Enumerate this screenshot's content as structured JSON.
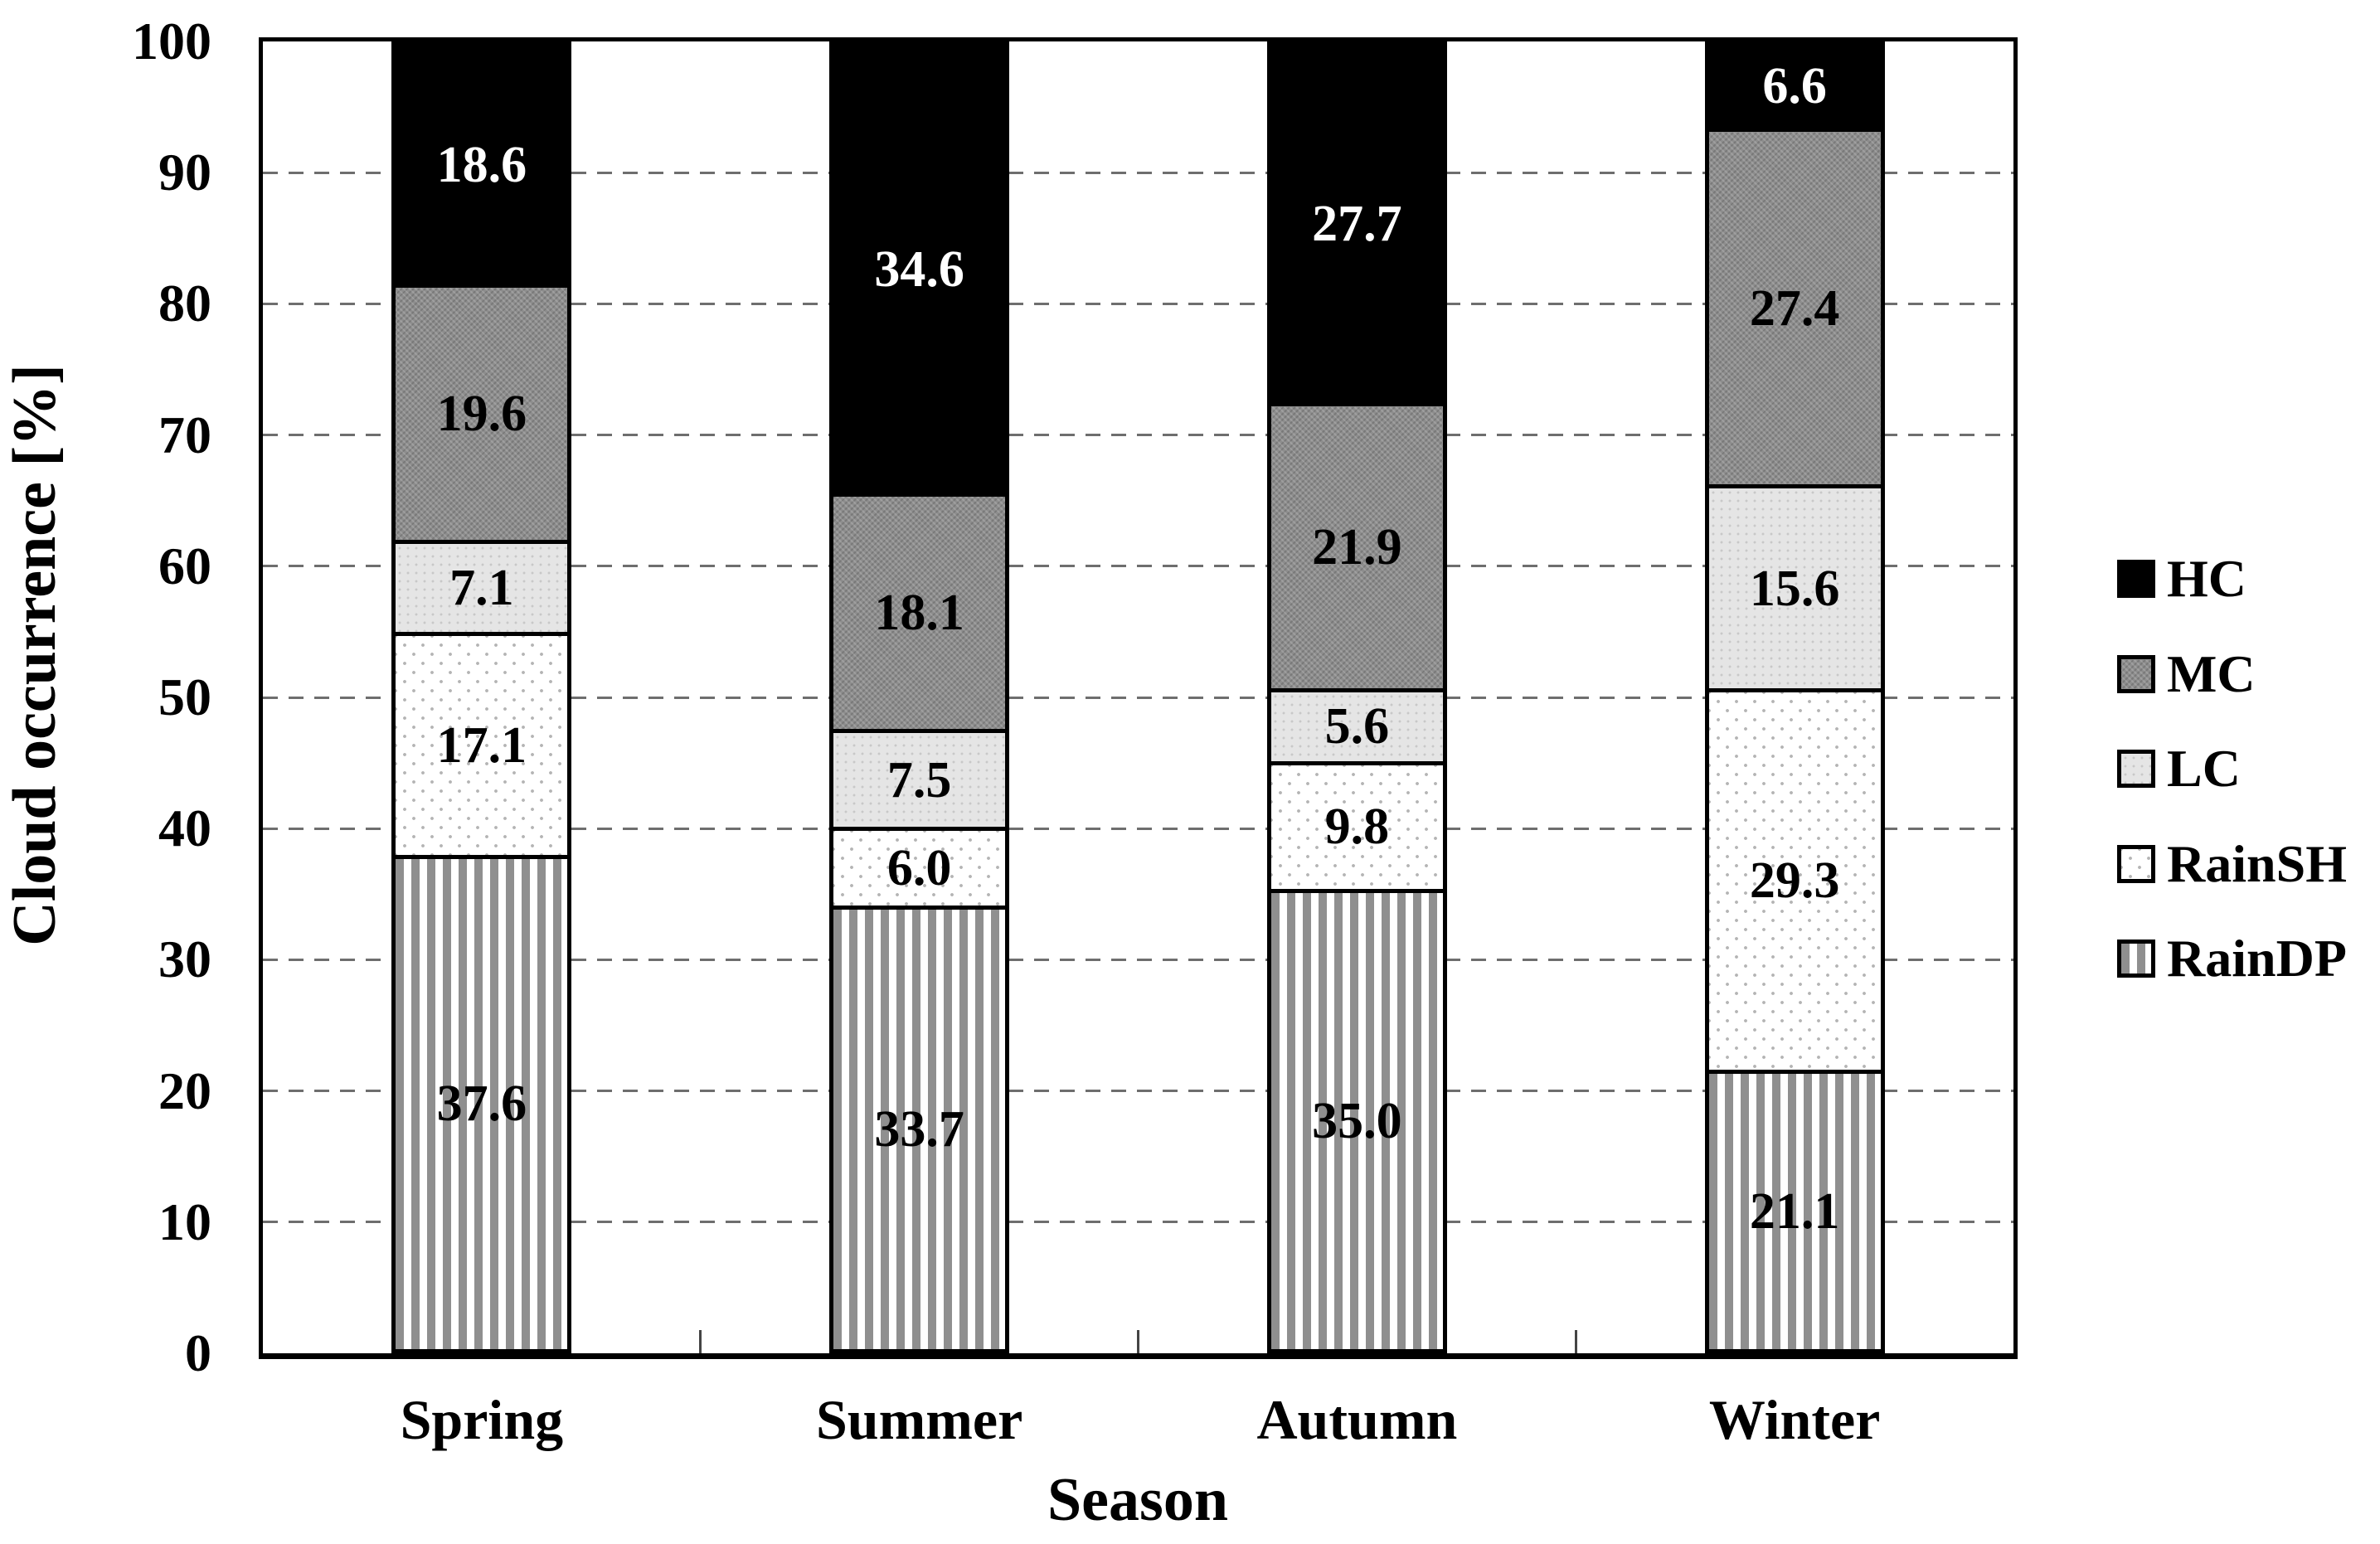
{
  "chart_data": {
    "type": "bar",
    "stacked": true,
    "title": "",
    "xlabel": "Season",
    "ylabel": "Cloud occurrence [%]",
    "ylim": [
      0,
      100
    ],
    "yticks": [
      0,
      10,
      20,
      30,
      40,
      50,
      60,
      70,
      80,
      90,
      100
    ],
    "grid": "dashed horizontal at every 10",
    "legend_position": "right",
    "categories": [
      "Spring",
      "Summer",
      "Autumn",
      "Winter"
    ],
    "series": [
      {
        "name": "HC",
        "pattern": "solid-black",
        "label_color": "#ffffff",
        "values": [
          18.6,
          34.6,
          27.7,
          6.6
        ],
        "labels": [
          "18.6",
          "34.6",
          "27.7",
          "6.6"
        ]
      },
      {
        "name": "MC",
        "pattern": "checker-dark-gray",
        "label_color": "#000000",
        "values": [
          19.6,
          18.1,
          21.9,
          27.4
        ],
        "labels": [
          "19.6",
          "18.1",
          "21.9",
          "27.4"
        ]
      },
      {
        "name": "LC",
        "pattern": "dots-light-gray",
        "label_color": "#000000",
        "values": [
          7.1,
          7.5,
          5.6,
          15.6
        ],
        "labels": [
          "7.1",
          "7.5",
          "5.6",
          "15.6"
        ]
      },
      {
        "name": "RainSH",
        "pattern": "sparse-dots-on-white",
        "label_color": "#000000",
        "values": [
          17.1,
          6.0,
          9.8,
          29.3
        ],
        "labels": [
          "17.1",
          "6.0",
          "9.8",
          "29.3"
        ]
      },
      {
        "name": "RainDP",
        "pattern": "vertical-gray-stripes",
        "label_color": "#000000",
        "values": [
          37.6,
          33.7,
          35.0,
          21.1
        ],
        "labels": [
          "37.6",
          "33.7",
          "35.0",
          "21.1"
        ]
      }
    ],
    "stack_order_bottom_to_top": [
      "RainDP",
      "RainSH",
      "LC",
      "MC",
      "HC"
    ],
    "legend_entries": [
      "HC",
      "MC",
      "LC",
      "RainSH",
      "RainDP"
    ]
  },
  "colors": {
    "hc_fill": "#000000",
    "mc_fill": "#8d8d8d",
    "lc_fill": "#e5e5e5",
    "rainsh_fill": "#ffffff",
    "rainsh_dot": "#b4b4b4",
    "raindp_stripe": "#8f8f8f",
    "raindp_bg": "#ffffff",
    "gridline": "#6e6e6e",
    "axis": "#000000",
    "hc_label_text": "#ffffff",
    "default_label_text": "#000000"
  },
  "axes": {
    "ylabel": "Cloud occurrence [%]",
    "xlabel": "Season"
  }
}
